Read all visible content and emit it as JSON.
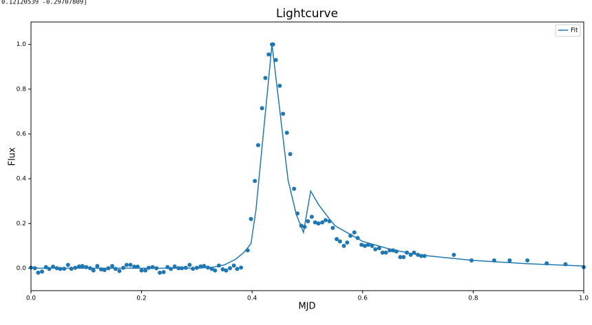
{
  "chart_data": {
    "type": "scatter",
    "annotation": "0.12120539  -0.29707809]",
    "title": "Lightcurve",
    "x_label": "MJD",
    "y_label": "Flux",
    "color": "#1f77b4",
    "x": [
      0.0,
      0.007,
      0.013,
      0.02,
      0.027,
      0.033,
      0.04,
      0.047,
      0.053,
      0.06,
      0.067,
      0.073,
      0.08,
      0.087,
      0.093,
      0.1,
      0.107,
      0.113,
      0.12,
      0.127,
      0.133,
      0.14,
      0.147,
      0.153,
      0.16,
      0.167,
      0.173,
      0.18,
      0.187,
      0.193,
      0.2,
      0.207,
      0.213,
      0.22,
      0.227,
      0.233,
      0.24,
      0.247,
      0.253,
      0.26,
      0.267,
      0.273,
      0.28,
      0.287,
      0.293,
      0.3,
      0.307,
      0.313,
      0.32,
      0.327,
      0.333,
      0.34,
      0.347,
      0.353,
      0.36,
      0.367,
      0.373,
      0.38,
      0.392,
      0.398,
      0.405,
      0.411,
      0.418,
      0.424,
      0.43,
      0.436,
      0.438,
      0.443,
      0.45,
      0.456,
      0.463,
      0.469,
      0.476,
      0.482,
      0.489,
      0.495,
      0.501,
      0.508,
      0.514,
      0.52,
      0.527,
      0.533,
      0.54,
      0.546,
      0.553,
      0.559,
      0.566,
      0.572,
      0.578,
      0.585,
      0.591,
      0.598,
      0.604,
      0.61,
      0.617,
      0.623,
      0.63,
      0.636,
      0.642,
      0.649,
      0.655,
      0.661,
      0.668,
      0.674,
      0.68,
      0.687,
      0.693,
      0.7,
      0.706,
      0.712,
      0.765,
      0.797,
      0.838,
      0.866,
      0.898,
      0.933,
      0.967,
      1.0
    ],
    "values": [
      0.003,
      0.0,
      -0.02,
      -0.015,
      0.005,
      -0.003,
      0.007,
      0.0,
      -0.003,
      -0.002,
      0.015,
      -0.002,
      0.002,
      0.008,
      0.01,
      0.005,
      0.0,
      -0.01,
      0.01,
      -0.005,
      -0.008,
      0.0,
      0.01,
      -0.003,
      -0.012,
      0.002,
      0.015,
      0.015,
      0.007,
      0.007,
      -0.01,
      -0.01,
      0.002,
      0.005,
      0.0,
      -0.02,
      -0.017,
      0.005,
      -0.003,
      0.008,
      0.0,
      0.0,
      0.002,
      0.015,
      -0.002,
      0.002,
      0.008,
      0.01,
      0.003,
      -0.003,
      -0.01,
      0.012,
      -0.005,
      -0.01,
      0.0,
      0.012,
      -0.003,
      0.003,
      0.08,
      0.22,
      0.39,
      0.55,
      0.715,
      0.85,
      0.955,
      1.0,
      1.0,
      0.93,
      0.815,
      0.69,
      0.605,
      0.51,
      0.355,
      0.245,
      0.19,
      0.185,
      0.21,
      0.23,
      0.205,
      0.2,
      0.205,
      0.215,
      0.21,
      0.18,
      0.13,
      0.12,
      0.1,
      0.115,
      0.145,
      0.16,
      0.135,
      0.105,
      0.1,
      0.105,
      0.1,
      0.085,
      0.09,
      0.07,
      0.07,
      0.08,
      0.08,
      0.075,
      0.05,
      0.05,
      0.07,
      0.06,
      0.07,
      0.06,
      0.055,
      0.055,
      0.06,
      0.035,
      0.035,
      0.035,
      0.035,
      0.022,
      0.018,
      0.005
    ],
    "series": [
      {
        "name": "Fit",
        "type": "line",
        "color": "#1f77b4",
        "x": [
          0,
          0.3,
          0.33,
          0.35,
          0.37,
          0.385,
          0.398,
          0.407,
          0.436,
          0.465,
          0.48,
          0.493,
          0.506,
          0.52,
          0.54,
          0.55,
          0.6,
          0.65,
          0.7,
          0.8,
          0.9,
          1.0
        ],
        "values": [
          0,
          0,
          0.005,
          0.015,
          0.04,
          0.07,
          0.11,
          0.26,
          1.0,
          0.395,
          0.24,
          0.16,
          0.345,
          0.285,
          0.22,
          0.19,
          0.12,
          0.085,
          0.06,
          0.035,
          0.02,
          0.01
        ]
      }
    ],
    "xlim": [
      0,
      1
    ],
    "ylim": [
      -0.1,
      1.1
    ],
    "xticks": [
      {
        "value": 0,
        "label": "0.0"
      },
      {
        "value": 0.2,
        "label": "0.2"
      },
      {
        "value": 0.4,
        "label": "0.4"
      },
      {
        "value": 0.6,
        "label": "0.6"
      },
      {
        "value": 0.8,
        "label": "0.8"
      },
      {
        "value": 1,
        "label": "1.0"
      }
    ],
    "yticks": [
      {
        "value": 0,
        "label": "0.0"
      },
      {
        "value": 0.2,
        "label": "0.2"
      },
      {
        "value": 0.4,
        "label": "0.4"
      },
      {
        "value": 0.6,
        "label": "0.6"
      },
      {
        "value": 0.8,
        "label": "0.8"
      },
      {
        "value": 1,
        "label": "1.0"
      }
    ],
    "legend": "upper right"
  }
}
